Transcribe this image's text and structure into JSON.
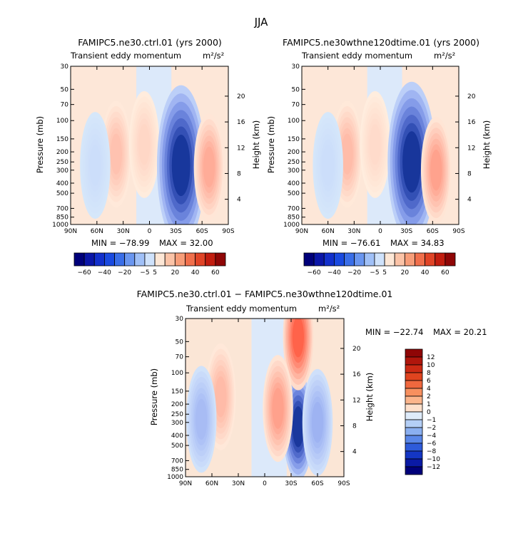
{
  "figure": {
    "title": "JJA"
  },
  "chart_data": [
    {
      "type": "heatmap",
      "title": "FAMIPC5.ne30.ctrl.01 (yrs 2000)",
      "subtitle": "Transient eddy momentum",
      "units": "m²/s²",
      "ylabel": "Pressure (mb)",
      "y2label": "Height (km)",
      "x_ticks": [
        "90N",
        "60N",
        "30N",
        "0",
        "30S",
        "60S",
        "90S"
      ],
      "y_ticks": [
        "30",
        "50",
        "70",
        "100",
        "150",
        "200",
        "250",
        "300",
        "400",
        "500",
        "700",
        "850",
        "1000"
      ],
      "y2_ticks": [
        "20",
        "16",
        "12",
        "8",
        "4"
      ],
      "min_label": "MIN = −78.99",
      "max_label": "MAX =  32.00",
      "min": -78.99,
      "max": 32.0,
      "features": [
        {
          "lat": 38,
          "p": 210,
          "v": 18
        },
        {
          "lat": 6,
          "p": 170,
          "v": 10
        },
        {
          "lat": -36,
          "p": 270,
          "v": -70
        },
        {
          "lat": -68,
          "p": 280,
          "v": 27
        },
        {
          "lat": 62,
          "p": 270,
          "v": -4
        }
      ],
      "colorbar": {
        "labels": [
          "−60",
          "−40",
          "−20",
          "−5",
          "5",
          "20",
          "40",
          "60"
        ],
        "colors": [
          "#00007a",
          "#0a16a8",
          "#1230cc",
          "#1a4ae0",
          "#3a6ee8",
          "#6a96f0",
          "#a0c0f7",
          "#cfe2fb",
          "#fde7d6",
          "#fbc3a7",
          "#f79d79",
          "#f06f4c",
          "#e04427",
          "#c21d0f",
          "#8f0606"
        ]
      }
    },
    {
      "type": "heatmap",
      "title": "FAMIPC5.ne30wthne120dtime.01 (yrs 2000)",
      "subtitle": "Transient eddy momentum",
      "units": "m²/s²",
      "ylabel": "Pressure (mb)",
      "y2label": "Height (km)",
      "x_ticks": [
        "90N",
        "60N",
        "30N",
        "0",
        "30S",
        "60S",
        "90S"
      ],
      "y_ticks": [
        "30",
        "50",
        "70",
        "100",
        "150",
        "200",
        "250",
        "300",
        "400",
        "500",
        "700",
        "850",
        "1000"
      ],
      "y2_ticks": [
        "20",
        "16",
        "12",
        "8",
        "4"
      ],
      "min_label": "MIN = −76.61",
      "max_label": "MAX =  34.83",
      "min": -76.61,
      "max": 34.83,
      "features": [
        {
          "lat": 38,
          "p": 210,
          "v": 20
        },
        {
          "lat": 6,
          "p": 170,
          "v": 8
        },
        {
          "lat": -36,
          "p": 250,
          "v": -68
        },
        {
          "lat": -64,
          "p": 300,
          "v": 30
        },
        {
          "lat": 60,
          "p": 270,
          "v": -4
        }
      ],
      "colorbar": {
        "labels": [
          "−60",
          "−40",
          "−20",
          "−5",
          "5",
          "20",
          "40",
          "60"
        ],
        "colors": [
          "#00007a",
          "#0a16a8",
          "#1230cc",
          "#1a4ae0",
          "#3a6ee8",
          "#6a96f0",
          "#a0c0f7",
          "#cfe2fb",
          "#fde7d6",
          "#fbc3a7",
          "#f79d79",
          "#f06f4c",
          "#e04427",
          "#c21d0f",
          "#8f0606"
        ]
      }
    },
    {
      "type": "heatmap",
      "title": "FAMIPC5.ne30.ctrl.01 − FAMIPC5.ne30wthne120dtime.01",
      "subtitle": "Transient eddy momentum",
      "units": "m²/s²",
      "ylabel": "Pressure (mb)",
      "y2label": "Height (km)",
      "x_ticks": [
        "90N",
        "60N",
        "30N",
        "0",
        "30S",
        "60S",
        "90S"
      ],
      "y_ticks": [
        "30",
        "50",
        "70",
        "100",
        "150",
        "200",
        "250",
        "300",
        "400",
        "500",
        "700",
        "850",
        "1000"
      ],
      "y2_ticks": [
        "20",
        "16",
        "12",
        "8",
        "4"
      ],
      "min_label": "MIN = −22.74",
      "max_label": "MAX =  20.21",
      "min": -22.74,
      "max": 20.21,
      "features": [
        {
          "lat": -38,
          "p": 330,
          "v": -20
        },
        {
          "lat": -38,
          "p": 45,
          "v": 16
        },
        {
          "lat": 50,
          "p": 170,
          "v": 6
        },
        {
          "lat": -15,
          "p": 220,
          "v": 9
        },
        {
          "lat": 72,
          "p": 280,
          "v": -5
        },
        {
          "lat": -60,
          "p": 300,
          "v": -6
        }
      ],
      "colorbar": {
        "labels": [
          "12",
          "10",
          "8",
          "6",
          "4",
          "2",
          "1",
          "0",
          "−1",
          "−2",
          "−4",
          "−6",
          "−8",
          "−10",
          "−12"
        ],
        "colors": [
          "#8f0606",
          "#b0160c",
          "#cc2a14",
          "#e0441f",
          "#f0683e",
          "#f7905f",
          "#fbb58c",
          "#fde0cc",
          "#deebfa",
          "#b4cff6",
          "#8aaff0",
          "#5a87e8",
          "#2e5bda",
          "#1436c4",
          "#0a1aa5",
          "#00007a"
        ]
      }
    }
  ]
}
